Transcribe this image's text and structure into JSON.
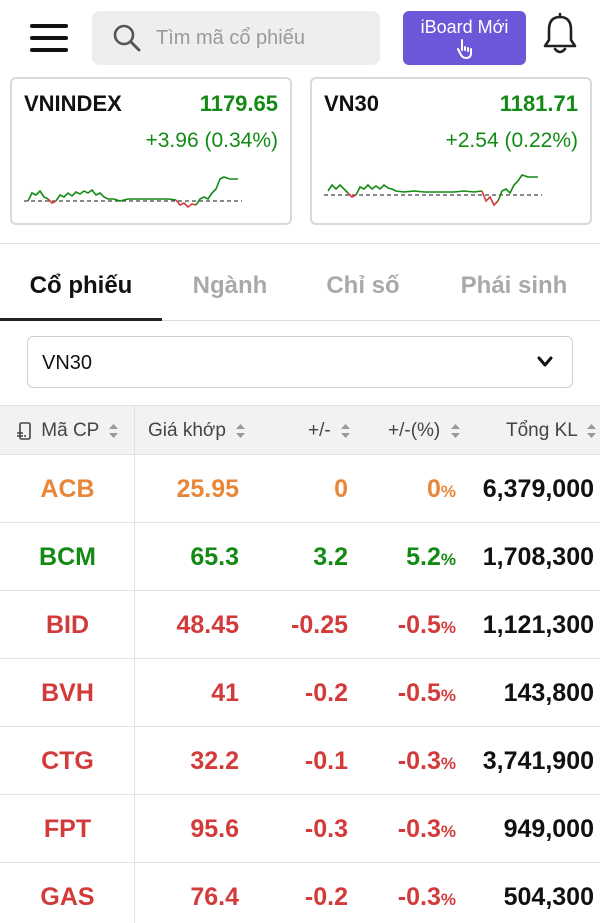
{
  "search": {
    "placeholder": "Tìm mã cổ phiếu"
  },
  "header": {
    "iboard_label": "iBoard Mới"
  },
  "indices": [
    {
      "name": "VNINDEX",
      "value": "1179.65",
      "change": "+3.96 (0.34%)"
    },
    {
      "name": "VN30",
      "value": "1181.71",
      "change": "+2.54 (0.22%)"
    }
  ],
  "tabs": [
    {
      "label": "Cổ phiếu"
    },
    {
      "label": "Ngành"
    },
    {
      "label": "Chỉ số"
    },
    {
      "label": "Phái sinh"
    }
  ],
  "filter": {
    "selected": "VN30"
  },
  "table": {
    "headers": {
      "symbol": "Mã CP",
      "price": "Giá khớp",
      "change": "+/-",
      "percent": "+/-(%)",
      "volume": "Tổng KL"
    },
    "rows": [
      {
        "symbol": "ACB",
        "price": "25.95",
        "change": "0",
        "percent": "0",
        "volume": "6,379,000",
        "color": "#e8873a"
      },
      {
        "symbol": "BCM",
        "price": "65.3",
        "change": "3.2",
        "percent": "5.2",
        "volume": "1,708,300",
        "color": "#138a13"
      },
      {
        "symbol": "BID",
        "price": "48.45",
        "change": "-0.25",
        "percent": "-0.5",
        "volume": "1,121,300",
        "color": "#d33b3b"
      },
      {
        "symbol": "BVH",
        "price": "41",
        "change": "-0.2",
        "percent": "-0.5",
        "volume": "143,800",
        "color": "#d33b3b"
      },
      {
        "symbol": "CTG",
        "price": "32.2",
        "change": "-0.1",
        "percent": "-0.3",
        "volume": "3,741,900",
        "color": "#d33b3b"
      },
      {
        "symbol": "FPT",
        "price": "95.6",
        "change": "-0.3",
        "percent": "-0.3",
        "volume": "949,000",
        "color": "#d33b3b"
      },
      {
        "symbol": "GAS",
        "price": "76.4",
        "change": "-0.2",
        "percent": "-0.3",
        "volume": "504,300",
        "color": "#d33b3b"
      }
    ],
    "percent_suffix": "%"
  },
  "colors": {
    "up": "#138a13",
    "down": "#d33b3b",
    "ref": "#e8873a",
    "accent": "#6a58d8"
  }
}
